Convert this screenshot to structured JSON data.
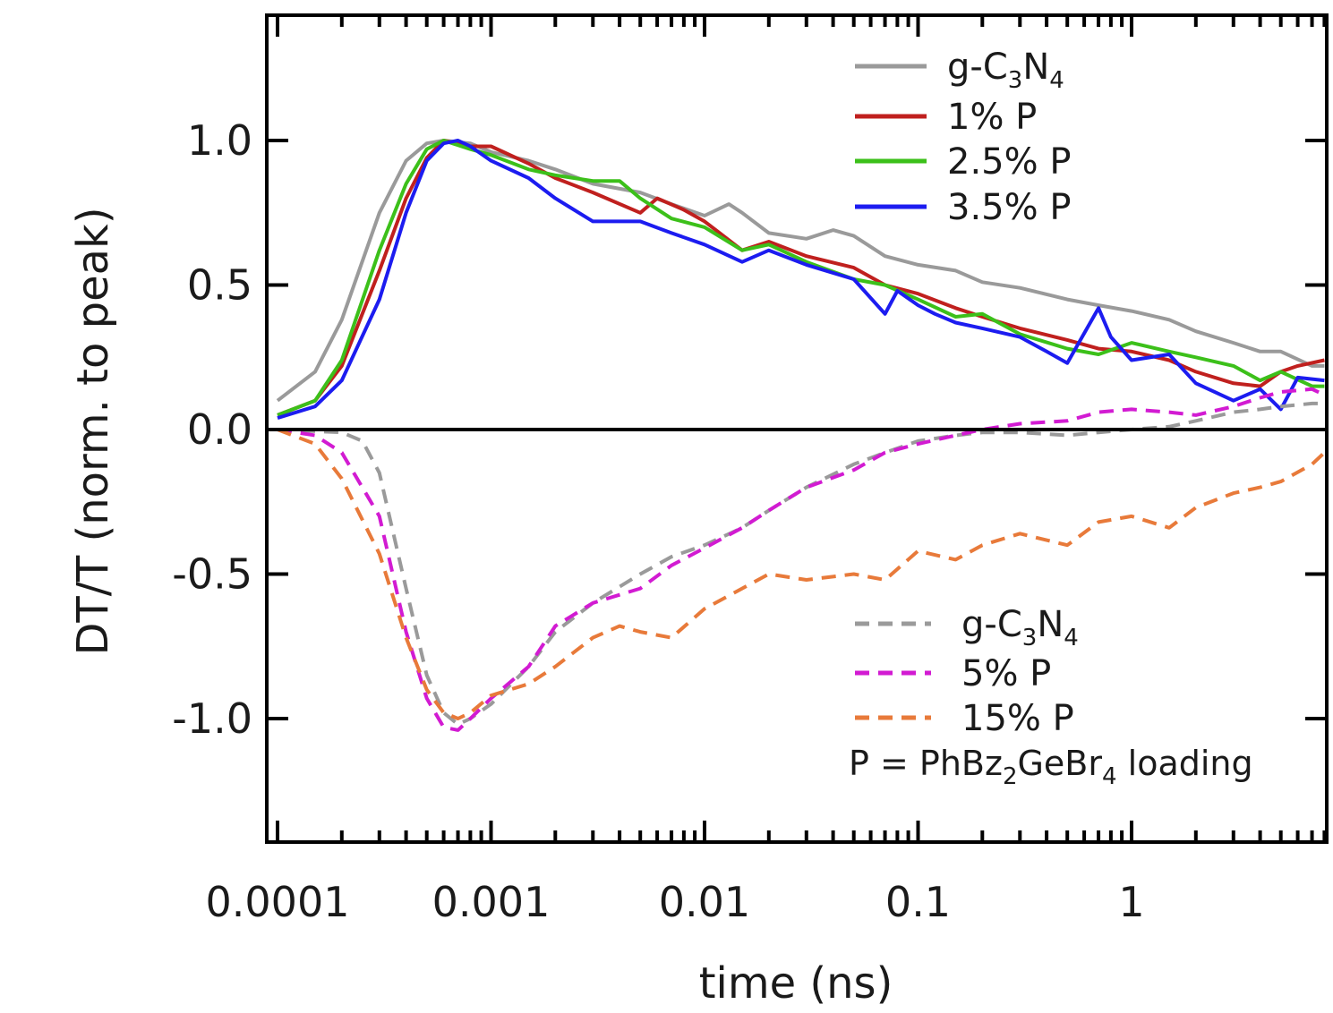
{
  "chart_data": {
    "type": "line",
    "xlabel": "time (ns)",
    "ylabel": "DT/T (norm. to peak)",
    "x_scale": "log",
    "xlim": [
      0.0001,
      8
    ],
    "ylim": [
      -1.4,
      1.4
    ],
    "x_ticks": [
      0.0001,
      0.001,
      0.01,
      0.1,
      1
    ],
    "x_tick_labels": [
      "0.0001",
      "0.001",
      "0.01",
      "0.1",
      "1"
    ],
    "y_ticks": [
      1.0,
      0.5,
      0.0,
      -0.5,
      -1.0
    ],
    "y_tick_labels": [
      "1.0",
      "0.5",
      "0.0",
      "-0.5",
      "-1.0"
    ],
    "zero_line": true,
    "grid": false,
    "legends": [
      {
        "placement": "top-right",
        "entries": [
          {
            "text": "g-C",
            "sub1": "3",
            "mid": "N",
            "sub2": "4",
            "series": 0
          },
          {
            "text": "1% P",
            "series": 1
          },
          {
            "text": "2.5% P",
            "series": 2
          },
          {
            "text": "3.5% P",
            "series": 3
          }
        ]
      },
      {
        "placement": "bottom-right",
        "entries": [
          {
            "text": "g-C",
            "sub1": "3",
            "mid": "N",
            "sub2": "4",
            "series": 4
          },
          {
            "text": "5% P",
            "series": 5
          },
          {
            "text": "15% P",
            "series": 6
          }
        ]
      }
    ],
    "note": {
      "pre": "P = PhBz",
      "sub1": "2",
      "mid": "GeBr",
      "sub2": "4",
      "post": " loading"
    },
    "series": [
      {
        "name": "g-C3N4",
        "color": "#9a9a9a",
        "dash": false,
        "x": [
          0.0001,
          0.00015,
          0.0002,
          0.0003,
          0.0004,
          0.0005,
          0.0006,
          0.0008,
          0.001,
          0.0015,
          0.002,
          0.003,
          0.005,
          0.007,
          0.01,
          0.013,
          0.015,
          0.02,
          0.03,
          0.04,
          0.05,
          0.07,
          0.1,
          0.15,
          0.2,
          0.3,
          0.5,
          0.7,
          1,
          1.5,
          2,
          3,
          4,
          5,
          7,
          8
        ],
        "y": [
          0.1,
          0.2,
          0.38,
          0.75,
          0.93,
          0.99,
          1.0,
          0.99,
          0.96,
          0.93,
          0.9,
          0.85,
          0.82,
          0.78,
          0.74,
          0.78,
          0.75,
          0.68,
          0.66,
          0.69,
          0.67,
          0.6,
          0.57,
          0.55,
          0.51,
          0.49,
          0.45,
          0.43,
          0.41,
          0.38,
          0.34,
          0.3,
          0.27,
          0.27,
          0.22,
          0.22
        ]
      },
      {
        "name": "1% P",
        "color": "#c0201e",
        "dash": false,
        "x": [
          0.0001,
          0.00015,
          0.0002,
          0.0003,
          0.0004,
          0.0005,
          0.0006,
          0.0008,
          0.001,
          0.0015,
          0.002,
          0.003,
          0.005,
          0.006,
          0.008,
          0.01,
          0.015,
          0.02,
          0.03,
          0.05,
          0.07,
          0.1,
          0.15,
          0.2,
          0.3,
          0.5,
          0.7,
          1,
          1.5,
          2,
          3,
          4,
          5,
          6,
          8
        ],
        "y": [
          0.05,
          0.1,
          0.22,
          0.55,
          0.8,
          0.94,
          1.0,
          0.98,
          0.98,
          0.92,
          0.87,
          0.82,
          0.75,
          0.8,
          0.76,
          0.72,
          0.62,
          0.65,
          0.6,
          0.56,
          0.5,
          0.47,
          0.42,
          0.39,
          0.35,
          0.31,
          0.28,
          0.27,
          0.24,
          0.2,
          0.16,
          0.15,
          0.2,
          0.22,
          0.24
        ]
      },
      {
        "name": "2.5% P",
        "color": "#3cc01a",
        "dash": false,
        "x": [
          0.0001,
          0.00015,
          0.0002,
          0.0003,
          0.0004,
          0.0005,
          0.0006,
          0.0008,
          0.001,
          0.0015,
          0.002,
          0.003,
          0.004,
          0.005,
          0.007,
          0.01,
          0.015,
          0.02,
          0.03,
          0.05,
          0.07,
          0.1,
          0.15,
          0.2,
          0.3,
          0.5,
          0.7,
          1,
          1.5,
          2,
          3,
          4,
          5,
          7,
          8
        ],
        "y": [
          0.05,
          0.1,
          0.24,
          0.62,
          0.85,
          0.97,
          1.0,
          0.97,
          0.95,
          0.9,
          0.88,
          0.86,
          0.86,
          0.8,
          0.73,
          0.7,
          0.62,
          0.64,
          0.58,
          0.52,
          0.5,
          0.45,
          0.39,
          0.4,
          0.33,
          0.28,
          0.26,
          0.3,
          0.27,
          0.25,
          0.22,
          0.17,
          0.2,
          0.15,
          0.15
        ]
      },
      {
        "name": "3.5% P",
        "color": "#1c1cf0",
        "dash": false,
        "x": [
          0.0001,
          0.00015,
          0.0002,
          0.0003,
          0.0004,
          0.0005,
          0.0006,
          0.0007,
          0.0008,
          0.001,
          0.0015,
          0.002,
          0.003,
          0.005,
          0.007,
          0.01,
          0.015,
          0.02,
          0.03,
          0.05,
          0.07,
          0.08,
          0.1,
          0.12,
          0.15,
          0.2,
          0.3,
          0.4,
          0.5,
          0.7,
          0.8,
          1,
          1.5,
          2,
          3,
          4,
          5,
          6,
          8
        ],
        "y": [
          0.04,
          0.08,
          0.17,
          0.45,
          0.75,
          0.93,
          0.99,
          1.0,
          0.98,
          0.93,
          0.87,
          0.8,
          0.72,
          0.72,
          0.68,
          0.64,
          0.58,
          0.62,
          0.57,
          0.52,
          0.4,
          0.48,
          0.43,
          0.4,
          0.37,
          0.35,
          0.32,
          0.27,
          0.23,
          0.42,
          0.32,
          0.24,
          0.26,
          0.16,
          0.1,
          0.14,
          0.07,
          0.18,
          0.17
        ]
      },
      {
        "name": "g-C3N4",
        "color": "#9a9a9a",
        "dash": true,
        "x": [
          0.0001,
          0.0002,
          0.00025,
          0.0003,
          0.0004,
          0.0005,
          0.0006,
          0.0007,
          0.0008,
          0.001,
          0.0015,
          0.002,
          0.003,
          0.005,
          0.007,
          0.01,
          0.015,
          0.02,
          0.03,
          0.05,
          0.07,
          0.1,
          0.15,
          0.2,
          0.3,
          0.5,
          0.7,
          1,
          1.5,
          2,
          3,
          4,
          5,
          7,
          8
        ],
        "y": [
          0.0,
          -0.01,
          -0.04,
          -0.15,
          -0.55,
          -0.85,
          -0.98,
          -1.02,
          -1.0,
          -0.95,
          -0.82,
          -0.7,
          -0.6,
          -0.5,
          -0.44,
          -0.4,
          -0.34,
          -0.28,
          -0.2,
          -0.12,
          -0.08,
          -0.04,
          -0.02,
          -0.01,
          -0.01,
          -0.02,
          -0.01,
          0.0,
          0.01,
          0.03,
          0.06,
          0.07,
          0.08,
          0.09,
          0.09
        ]
      },
      {
        "name": "5% P",
        "color": "#d21bd2",
        "dash": true,
        "x": [
          0.0001,
          0.00015,
          0.0002,
          0.0003,
          0.0004,
          0.0005,
          0.0006,
          0.0007,
          0.0008,
          0.001,
          0.0015,
          0.002,
          0.003,
          0.005,
          0.007,
          0.01,
          0.015,
          0.02,
          0.03,
          0.05,
          0.07,
          0.1,
          0.15,
          0.2,
          0.3,
          0.5,
          0.7,
          1,
          1.5,
          2,
          3,
          4,
          5,
          7,
          8
        ],
        "y": [
          0.0,
          -0.02,
          -0.08,
          -0.3,
          -0.7,
          -0.93,
          -1.03,
          -1.04,
          -1.0,
          -0.93,
          -0.82,
          -0.68,
          -0.6,
          -0.55,
          -0.47,
          -0.41,
          -0.34,
          -0.28,
          -0.2,
          -0.14,
          -0.08,
          -0.05,
          -0.02,
          0.0,
          0.02,
          0.03,
          0.06,
          0.07,
          0.06,
          0.05,
          0.08,
          0.11,
          0.13,
          0.14,
          0.12
        ]
      },
      {
        "name": "15% P",
        "color": "#e87a3a",
        "dash": true,
        "x": [
          0.0001,
          0.00015,
          0.0002,
          0.0003,
          0.0004,
          0.0005,
          0.0006,
          0.0007,
          0.0008,
          0.001,
          0.0015,
          0.002,
          0.003,
          0.004,
          0.005,
          0.007,
          0.01,
          0.015,
          0.02,
          0.03,
          0.05,
          0.07,
          0.1,
          0.15,
          0.2,
          0.3,
          0.5,
          0.7,
          1,
          1.5,
          2,
          3,
          4,
          5,
          7,
          8
        ],
        "y": [
          0.0,
          -0.05,
          -0.17,
          -0.43,
          -0.72,
          -0.9,
          -0.98,
          -1.0,
          -0.98,
          -0.92,
          -0.88,
          -0.82,
          -0.72,
          -0.68,
          -0.7,
          -0.72,
          -0.62,
          -0.55,
          -0.5,
          -0.52,
          -0.5,
          -0.52,
          -0.42,
          -0.45,
          -0.4,
          -0.36,
          -0.4,
          -0.32,
          -0.3,
          -0.34,
          -0.27,
          -0.22,
          -0.2,
          -0.18,
          -0.12,
          -0.08
        ]
      }
    ]
  }
}
